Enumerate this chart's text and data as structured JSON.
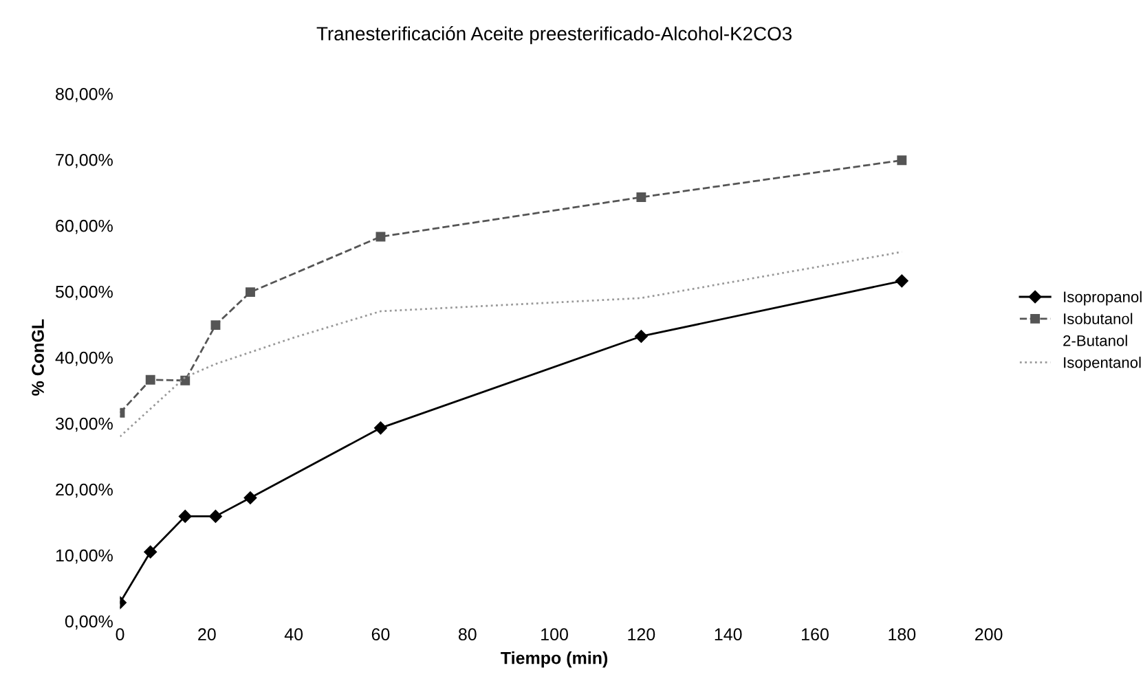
{
  "chart_data": {
    "type": "line",
    "title": "Tranesterificación Aceite preesterificado-Alcohol-K2CO3",
    "xlabel": "Tiempo (min)",
    "ylabel": "% ConGL",
    "x": [
      0,
      7,
      15,
      22,
      30,
      60,
      120,
      180
    ],
    "series": [
      {
        "name": "Isopropanol",
        "color": "#000000",
        "marker": "diamond",
        "line_style": "solid",
        "values": [
          2.8,
          10.5,
          15.9,
          15.9,
          18.7,
          29.3,
          43.2,
          51.6
        ]
      },
      {
        "name": "Isobutanol",
        "color": "#555555",
        "marker": "square",
        "line_style": "dashed",
        "values": [
          31.6,
          36.6,
          36.5,
          44.9,
          49.9,
          58.3,
          64.3,
          69.9
        ]
      },
      {
        "name": "2-Butanol",
        "marker": "none",
        "values": [
          null,
          null,
          null,
          null,
          null,
          null,
          null,
          null
        ]
      },
      {
        "name": "Isopentanol",
        "color": "#999999",
        "marker": "none",
        "line_style": "dotted",
        "x": [
          0,
          15,
          22,
          40,
          60,
          120,
          180
        ],
        "values": [
          28,
          37,
          39,
          43,
          47,
          49,
          56
        ]
      }
    ],
    "xlim": [
      0,
      200
    ],
    "xticks": [
      0,
      20,
      40,
      60,
      80,
      100,
      120,
      140,
      160,
      180,
      200
    ],
    "ylim": [
      0,
      80
    ],
    "yticks": [
      {
        "value": 0,
        "label": "0,00%"
      },
      {
        "value": 10,
        "label": "10,00%"
      },
      {
        "value": 20,
        "label": "20,00%"
      },
      {
        "value": 30,
        "label": "30,00%"
      },
      {
        "value": 40,
        "label": "40,00%"
      },
      {
        "value": 50,
        "label": "50,00%"
      },
      {
        "value": 60,
        "label": "60,00%"
      },
      {
        "value": 70,
        "label": "70,00%"
      },
      {
        "value": 80,
        "label": "80,00%"
      }
    ],
    "legend": "right",
    "grid": false
  }
}
